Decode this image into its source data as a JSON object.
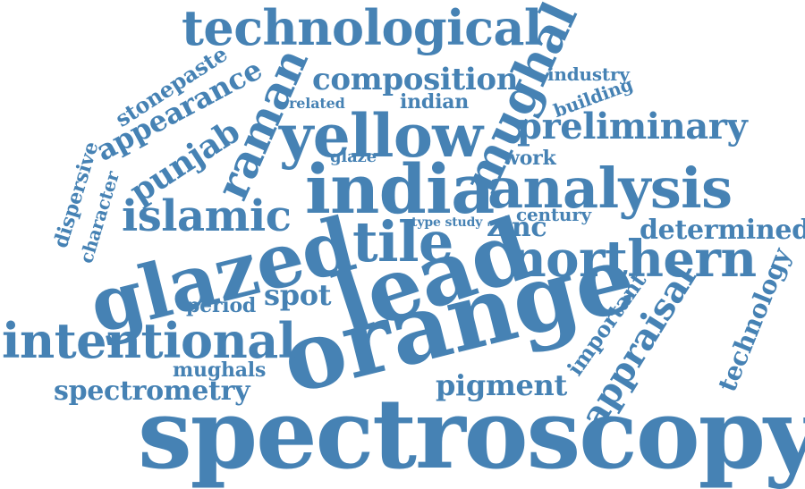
{
  "colors": {
    "word": "#4682b4",
    "background": "#ffffff"
  },
  "words": [
    {
      "id": "spectroscopy",
      "text": "spectroscopy"
    },
    {
      "id": "orange",
      "text": "orange"
    },
    {
      "id": "lead",
      "text": "lead"
    },
    {
      "id": "glazed",
      "text": "glazed"
    },
    {
      "id": "india",
      "text": "india"
    },
    {
      "id": "tile",
      "text": "tile"
    },
    {
      "id": "yellow",
      "text": "yellow"
    },
    {
      "id": "analysis",
      "text": "analysis"
    },
    {
      "id": "northern",
      "text": "northern"
    },
    {
      "id": "intentional",
      "text": "intentional"
    },
    {
      "id": "technological",
      "text": "technological"
    },
    {
      "id": "mughal",
      "text": "mughal"
    },
    {
      "id": "raman",
      "text": "raman"
    },
    {
      "id": "islamic",
      "text": "islamic"
    },
    {
      "id": "preliminary",
      "text": "preliminary"
    },
    {
      "id": "composition",
      "text": "composition"
    },
    {
      "id": "appraisal",
      "text": "appraisal"
    },
    {
      "id": "punjab",
      "text": "punjab"
    },
    {
      "id": "appearance",
      "text": "appearance"
    },
    {
      "id": "spectrometry",
      "text": "spectrometry"
    },
    {
      "id": "determined",
      "text": "determined"
    },
    {
      "id": "pigment",
      "text": "pigment"
    },
    {
      "id": "zinc",
      "text": "zinc"
    },
    {
      "id": "spot",
      "text": "spot"
    },
    {
      "id": "stonepaste",
      "text": "stonepaste"
    },
    {
      "id": "technology",
      "text": "technology"
    },
    {
      "id": "important",
      "text": "important"
    },
    {
      "id": "dispersive",
      "text": "dispersive"
    },
    {
      "id": "character",
      "text": "character"
    },
    {
      "id": "period",
      "text": "period"
    },
    {
      "id": "mughals",
      "text": "mughals"
    },
    {
      "id": "indian",
      "text": "indian"
    },
    {
      "id": "industry",
      "text": "industry"
    },
    {
      "id": "building",
      "text": "building"
    },
    {
      "id": "work",
      "text": "work"
    },
    {
      "id": "century",
      "text": "century"
    },
    {
      "id": "related",
      "text": "related"
    },
    {
      "id": "glaze",
      "text": "glaze"
    },
    {
      "id": "type-study",
      "text": "type study"
    }
  ]
}
